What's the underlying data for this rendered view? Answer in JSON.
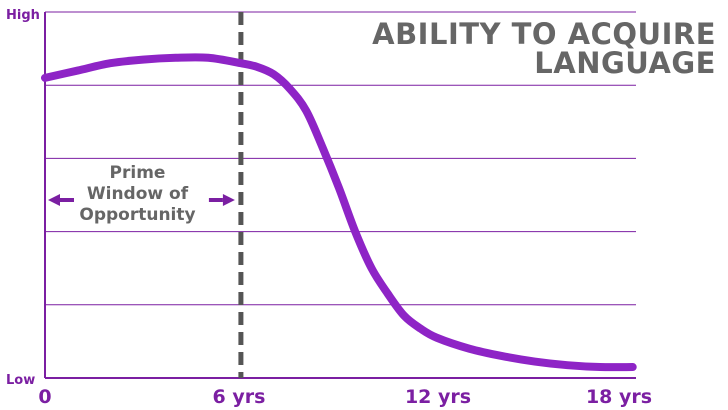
{
  "colors": {
    "accent": "#7b1fa2",
    "curve": "#8e24c6",
    "grid": "#7b1fa2",
    "text": "#666666",
    "marker": "#555555"
  },
  "chart_data": {
    "type": "line",
    "title_lines": [
      "ABILITY TO ACQUIRE",
      "LANGUAGE"
    ],
    "xlabel": "",
    "ylabel": "",
    "x_ticks": [
      {
        "value": 0,
        "label": "0"
      },
      {
        "value": 6,
        "label": "6 yrs"
      },
      {
        "value": 12,
        "label": "12 yrs"
      },
      {
        "value": 18,
        "label": "18 yrs"
      }
    ],
    "y_ticks": [
      {
        "value": 0,
        "label": "Low"
      },
      {
        "value": 1,
        "label": "High"
      }
    ],
    "xlim": [
      0,
      18.1
    ],
    "ylim": [
      0,
      1
    ],
    "grid": true,
    "series": [
      {
        "x": [
          0,
          1,
          2,
          3,
          4,
          5,
          6,
          6.5,
          7,
          7.5,
          8,
          8.5,
          9,
          9.5,
          10,
          10.5,
          11,
          11.5,
          12,
          13,
          14,
          15,
          16,
          17,
          18
        ],
        "y": [
          0.82,
          0.84,
          0.86,
          0.87,
          0.875,
          0.875,
          0.86,
          0.85,
          0.83,
          0.79,
          0.73,
          0.63,
          0.52,
          0.4,
          0.3,
          0.23,
          0.17,
          0.135,
          0.11,
          0.08,
          0.06,
          0.045,
          0.035,
          0.03,
          0.03
        ]
      }
    ],
    "annotation": {
      "marker_x": 6,
      "label": "Prime Window of Opportunity",
      "lines": [
        "Prime",
        "Window of",
        "Opportunity"
      ],
      "arrow_range": [
        0,
        6
      ]
    }
  }
}
